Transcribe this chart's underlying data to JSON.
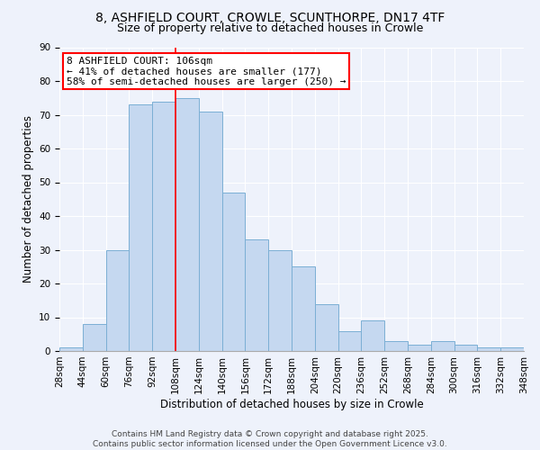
{
  "title": "8, ASHFIELD COURT, CROWLE, SCUNTHORPE, DN17 4TF",
  "subtitle": "Size of property relative to detached houses in Crowle",
  "bar_values": [
    1,
    8,
    30,
    73,
    74,
    75,
    71,
    47,
    33,
    30,
    25,
    14,
    6,
    9,
    3,
    2,
    3,
    2,
    1,
    1
  ],
  "bin_starts": [
    28,
    44,
    60,
    76,
    92,
    108,
    124,
    140,
    156,
    172,
    188,
    204,
    220,
    236,
    252,
    268,
    284,
    300,
    316,
    332
  ],
  "bin_width": 16,
  "x_tick_labels": [
    "28sqm",
    "44sqm",
    "60sqm",
    "76sqm",
    "92sqm",
    "108sqm",
    "124sqm",
    "140sqm",
    "156sqm",
    "172sqm",
    "188sqm",
    "204sqm",
    "220sqm",
    "236sqm",
    "252sqm",
    "268sqm",
    "284sqm",
    "300sqm",
    "316sqm",
    "332sqm",
    "348sqm"
  ],
  "xlabel": "Distribution of detached houses by size in Crowle",
  "ylabel": "Number of detached properties",
  "ylim": [
    0,
    90
  ],
  "yticks": [
    0,
    10,
    20,
    30,
    40,
    50,
    60,
    70,
    80,
    90
  ],
  "bar_color": "#c5d8f0",
  "bar_edge_color": "#7bafd4",
  "vline_x": 108,
  "vline_color": "red",
  "annotation_title": "8 ASHFIELD COURT: 106sqm",
  "annotation_line1": "← 41% of detached houses are smaller (177)",
  "annotation_line2": "58% of semi-detached houses are larger (250) →",
  "box_color": "white",
  "box_edge_color": "red",
  "background_color": "#eef2fb",
  "footer1": "Contains HM Land Registry data © Crown copyright and database right 2025.",
  "footer2": "Contains public sector information licensed under the Open Government Licence v3.0.",
  "title_fontsize": 10,
  "subtitle_fontsize": 9,
  "axis_label_fontsize": 8.5,
  "tick_fontsize": 7.5,
  "annotation_fontsize": 8,
  "footer_fontsize": 6.5
}
